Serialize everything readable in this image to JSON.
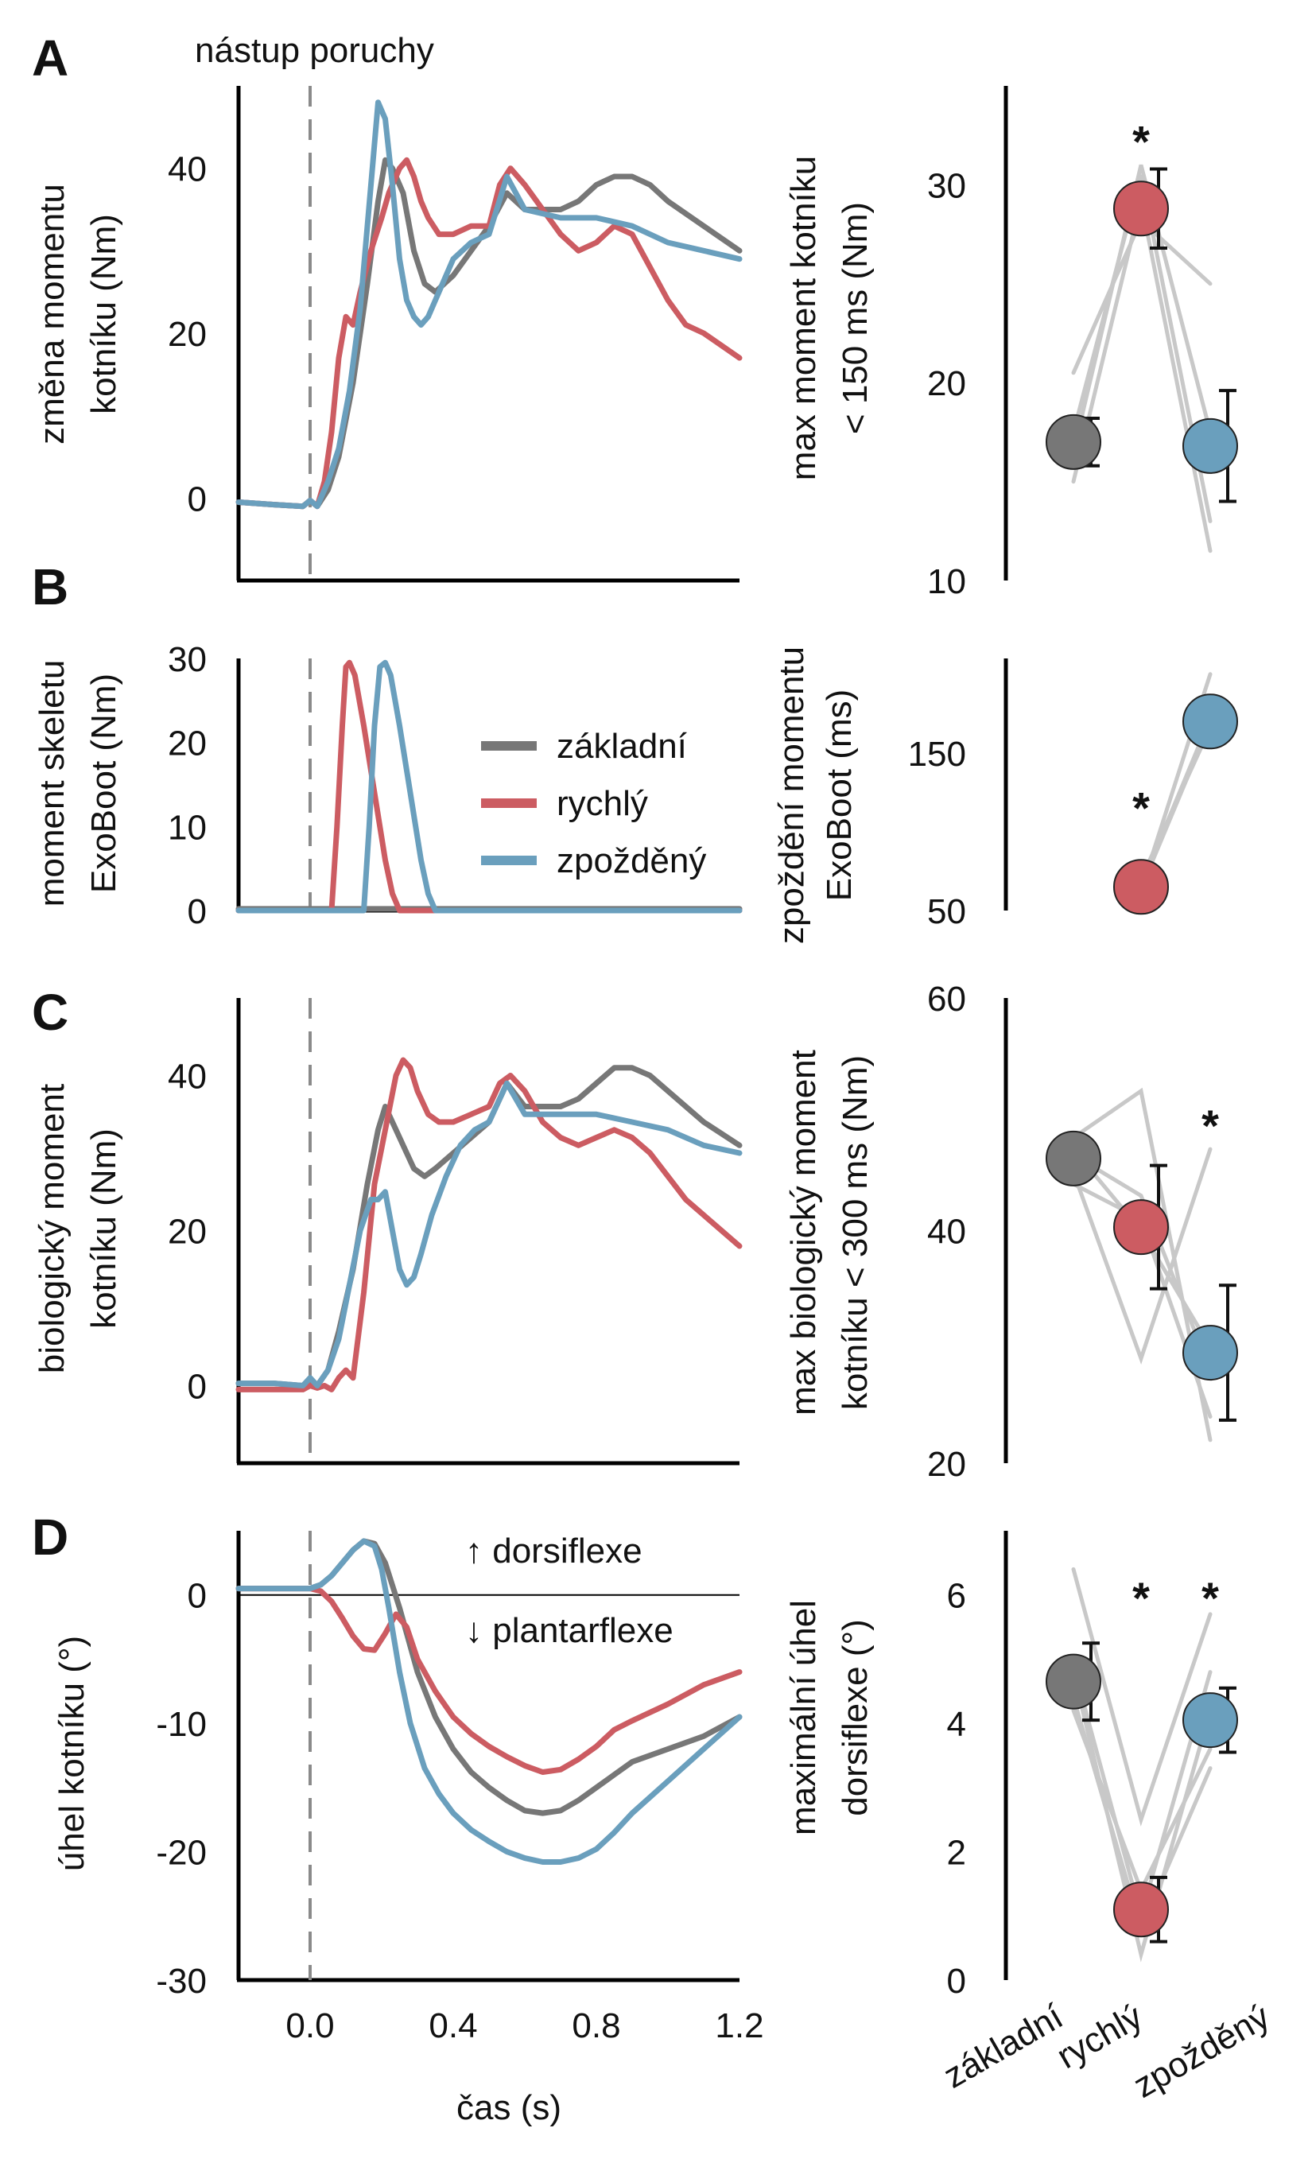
{
  "figure": {
    "perturbation_label": "nástup poruchy",
    "time_axis_label": "čas (s)",
    "legend": {
      "title": "",
      "items": [
        "základní",
        "rychlý",
        "zpožděný"
      ]
    },
    "colors": {
      "baseline": "#777777",
      "fast": "#cc5c62",
      "delayed": "#6a9fbd",
      "subject_lines": "#c8c8c8"
    },
    "group_labels": [
      "základní",
      "rychlý",
      "zpožděný"
    ]
  },
  "chart_data": [
    {
      "type": "line",
      "panel": "A",
      "title": "",
      "xlabel": "",
      "ylabel_lines": [
        "změna momentu",
        "kotníku (Nm)"
      ],
      "xlim": [
        -0.2,
        1.2
      ],
      "ylim": [
        -10,
        50
      ],
      "yticks": [
        0,
        20,
        40
      ],
      "series": [
        {
          "name": "základní",
          "x": [
            -0.2,
            -0.1,
            -0.02,
            0.0,
            0.02,
            0.05,
            0.08,
            0.12,
            0.16,
            0.19,
            0.21,
            0.23,
            0.26,
            0.29,
            0.32,
            0.35,
            0.4,
            0.45,
            0.5,
            0.55,
            0.6,
            0.65,
            0.7,
            0.75,
            0.8,
            0.85,
            0.9,
            0.95,
            1.0,
            1.1,
            1.2
          ],
          "y": [
            -0.5,
            -0.8,
            -1.0,
            -0.3,
            -1.0,
            1,
            5,
            14,
            26,
            36,
            41,
            40,
            37,
            30,
            26,
            25,
            27,
            30,
            33,
            37,
            35,
            35,
            35,
            36,
            38,
            39,
            39,
            38,
            36,
            33,
            30
          ]
        },
        {
          "name": "rychlý",
          "x": [
            -0.2,
            -0.1,
            -0.02,
            0.0,
            0.02,
            0.04,
            0.06,
            0.08,
            0.1,
            0.12,
            0.14,
            0.17,
            0.2,
            0.22,
            0.25,
            0.27,
            0.29,
            0.31,
            0.33,
            0.36,
            0.4,
            0.45,
            0.5,
            0.53,
            0.56,
            0.6,
            0.65,
            0.7,
            0.75,
            0.8,
            0.85,
            0.9,
            0.95,
            1.0,
            1.05,
            1.1,
            1.2
          ],
          "y": [
            -0.5,
            -0.8,
            -1.0,
            -0.3,
            -1.0,
            2,
            8,
            17,
            22,
            21,
            25,
            30,
            34,
            37,
            40,
            41,
            39,
            36,
            34,
            32,
            32,
            33,
            33,
            38,
            40,
            38,
            35,
            32,
            30,
            31,
            33,
            32,
            28,
            24,
            21,
            20,
            17
          ]
        },
        {
          "name": "zpožděný",
          "x": [
            -0.2,
            -0.1,
            -0.02,
            0.0,
            0.02,
            0.05,
            0.08,
            0.11,
            0.14,
            0.17,
            0.19,
            0.21,
            0.23,
            0.25,
            0.27,
            0.29,
            0.31,
            0.33,
            0.36,
            0.4,
            0.45,
            0.5,
            0.55,
            0.6,
            0.7,
            0.8,
            0.9,
            1.0,
            1.1,
            1.2
          ],
          "y": [
            -0.5,
            -0.8,
            -1.0,
            -0.3,
            -1.0,
            2,
            6,
            13,
            23,
            38,
            48,
            46,
            38,
            29,
            24,
            22,
            21,
            22,
            25,
            29,
            31,
            32,
            39,
            35,
            34,
            34,
            33,
            31,
            30,
            29
          ]
        }
      ]
    },
    {
      "type": "scatter",
      "panel": "A-summary",
      "title": "",
      "ylabel_lines": [
        "max moment kotníku",
        "< 150 ms (Nm)"
      ],
      "ylim": [
        10,
        35
      ],
      "yticks": [
        10,
        20,
        30
      ],
      "categories": [
        "základní",
        "rychlý",
        "zpožděný"
      ],
      "means": [
        17.0,
        28.8,
        16.8
      ],
      "errors": [
        1.2,
        2.0,
        2.8
      ],
      "significance": [
        "",
        "*",
        ""
      ],
      "subject_lines": [
        [
          20.5,
          28.2,
          25.0
        ],
        [
          15.0,
          29.2,
          11.5
        ],
        [
          17.5,
          30.5,
          13.0
        ],
        [
          16.5,
          31.0,
          17.5
        ]
      ]
    },
    {
      "type": "line",
      "panel": "B",
      "title": "",
      "xlabel": "",
      "ylabel_lines": [
        "moment skeletu",
        "ExoBoot (Nm)"
      ],
      "xlim": [
        -0.2,
        1.2
      ],
      "ylim": [
        0,
        30
      ],
      "yticks": [
        0,
        10,
        20,
        30
      ],
      "series": [
        {
          "name": "základní",
          "x": [
            -0.2,
            1.2
          ],
          "y": [
            0.2,
            0.2
          ]
        },
        {
          "name": "rychlý",
          "x": [
            -0.2,
            0.06,
            0.075,
            0.09,
            0.1,
            0.11,
            0.125,
            0.15,
            0.18,
            0.21,
            0.23,
            0.25,
            1.2
          ],
          "y": [
            0,
            0,
            10,
            22,
            29,
            29.5,
            28,
            22,
            14,
            6,
            2,
            0,
            0
          ]
        },
        {
          "name": "zpožděný",
          "x": [
            -0.2,
            0.15,
            0.165,
            0.18,
            0.195,
            0.21,
            0.225,
            0.25,
            0.28,
            0.31,
            0.33,
            0.35,
            1.2
          ],
          "y": [
            0,
            0,
            10,
            22,
            29,
            29.5,
            28,
            22,
            14,
            6,
            2,
            0,
            0
          ]
        }
      ]
    },
    {
      "type": "scatter",
      "panel": "B-summary",
      "title": "",
      "ylabel_lines": [
        "zpoždění momentu",
        "ExoBoot (ms)"
      ],
      "ylim": [
        50,
        210
      ],
      "yticks": [
        50,
        150
      ],
      "categories": [
        "rychlý",
        "zpožděný"
      ],
      "means": [
        65,
        170
      ],
      "errors": [
        0,
        0
      ],
      "significance": [
        "*",
        ""
      ],
      "subject_lines": [
        [
          63,
          200
        ],
        [
          66,
          172
        ],
        [
          68,
          168
        ],
        [
          70,
          166
        ],
        [
          64,
          169
        ]
      ]
    },
    {
      "type": "line",
      "panel": "C",
      "title": "",
      "xlabel": "",
      "ylabel_lines": [
        "biologický moment",
        "kotníku (Nm)"
      ],
      "xlim": [
        -0.2,
        1.2
      ],
      "ylim": [
        -10,
        50
      ],
      "yticks": [
        0,
        20,
        40
      ],
      "series": [
        {
          "name": "základní",
          "x": [
            -0.2,
            -0.1,
            -0.02,
            0.0,
            0.02,
            0.05,
            0.08,
            0.12,
            0.16,
            0.19,
            0.21,
            0.23,
            0.26,
            0.29,
            0.32,
            0.35,
            0.4,
            0.45,
            0.5,
            0.55,
            0.6,
            0.65,
            0.7,
            0.75,
            0.8,
            0.85,
            0.9,
            0.95,
            1.0,
            1.1,
            1.2
          ],
          "y": [
            0.3,
            0.3,
            0.0,
            1.0,
            0.0,
            2,
            7,
            15,
            26,
            33,
            36,
            34,
            31,
            28,
            27,
            28,
            30,
            32,
            34,
            39,
            36,
            36,
            36,
            37,
            39,
            41,
            41,
            40,
            38,
            34,
            31
          ]
        },
        {
          "name": "rychlý",
          "x": [
            -0.2,
            -0.1,
            -0.02,
            0.0,
            0.02,
            0.04,
            0.06,
            0.08,
            0.1,
            0.12,
            0.15,
            0.18,
            0.21,
            0.24,
            0.26,
            0.28,
            0.3,
            0.33,
            0.36,
            0.4,
            0.45,
            0.5,
            0.53,
            0.56,
            0.6,
            0.65,
            0.7,
            0.75,
            0.8,
            0.85,
            0.9,
            0.95,
            1.0,
            1.05,
            1.1,
            1.2
          ],
          "y": [
            -0.5,
            -0.5,
            -0.5,
            0.0,
            -0.3,
            0.0,
            -0.5,
            1.0,
            2.0,
            1.0,
            12,
            26,
            33,
            40,
            42,
            41,
            38,
            35,
            34,
            34,
            35,
            36,
            39,
            40,
            38,
            34,
            32,
            31,
            32,
            33,
            32,
            30,
            27,
            24,
            22,
            18
          ]
        },
        {
          "name": "zpožděný",
          "x": [
            -0.2,
            -0.1,
            -0.02,
            0.0,
            0.02,
            0.05,
            0.08,
            0.11,
            0.14,
            0.17,
            0.19,
            0.21,
            0.23,
            0.25,
            0.27,
            0.29,
            0.31,
            0.34,
            0.38,
            0.42,
            0.46,
            0.5,
            0.55,
            0.6,
            0.7,
            0.8,
            0.9,
            1.0,
            1.1,
            1.2
          ],
          "y": [
            0.3,
            0.3,
            0.0,
            1.0,
            0.0,
            2,
            6,
            13,
            20,
            24,
            24,
            25,
            20,
            15,
            13,
            14,
            17,
            22,
            27,
            31,
            33,
            34,
            39,
            35,
            35,
            35,
            34,
            33,
            31,
            30
          ]
        }
      ]
    },
    {
      "type": "scatter",
      "panel": "C-summary",
      "title": "",
      "ylabel_lines": [
        "max biologický moment",
        "kotníku < 300 ms (Nm)"
      ],
      "ylim": [
        20,
        60
      ],
      "yticks": [
        20,
        40,
        60
      ],
      "categories": [
        "základní",
        "rychlý",
        "zpožděný"
      ],
      "means": [
        46.2,
        40.3,
        29.5
      ],
      "errors": [
        0,
        5.3,
        5.8
      ],
      "significance": [
        "",
        "",
        "*"
      ],
      "subject_lines": [
        [
          48.0,
          52.0,
          22.0
        ],
        [
          45.0,
          29.0,
          47.0
        ],
        [
          47.0,
          40.0,
          30.0
        ],
        [
          44.0,
          41.0,
          24.0
        ],
        [
          46.5,
          43.0,
          28.0
        ]
      ]
    },
    {
      "type": "line",
      "panel": "D",
      "title": "",
      "xlabel": "čas (s)",
      "ylabel_lines": [
        "úhel kotníku (°)"
      ],
      "xlim": [
        -0.2,
        1.2
      ],
      "ylim": [
        -30,
        5
      ],
      "xticks": [
        0.0,
        0.4,
        0.8,
        1.2
      ],
      "xtick_labels": [
        "0.0",
        "0.4",
        "0.8",
        "1.2"
      ],
      "yticks": [
        -30,
        -20,
        -10,
        0
      ],
      "annotations": [
        "↑ dorsiflexe",
        "↓ plantarflexe"
      ],
      "series": [
        {
          "name": "základní",
          "x": [
            -0.2,
            -0.05,
            0.0,
            0.03,
            0.06,
            0.09,
            0.12,
            0.15,
            0.18,
            0.21,
            0.25,
            0.3,
            0.35,
            0.4,
            0.45,
            0.5,
            0.55,
            0.6,
            0.65,
            0.7,
            0.75,
            0.8,
            0.85,
            0.9,
            1.0,
            1.1,
            1.2
          ],
          "y": [
            0.5,
            0.5,
            0.5,
            0.8,
            1.5,
            2.5,
            3.5,
            4.2,
            4.0,
            2.5,
            -1,
            -6,
            -9.5,
            -12,
            -13.8,
            -15,
            -16,
            -16.8,
            -17,
            -16.8,
            -16,
            -15,
            -14,
            -13,
            -12,
            -11,
            -9.5
          ]
        },
        {
          "name": "rychlý",
          "x": [
            -0.2,
            -0.05,
            0.0,
            0.03,
            0.06,
            0.09,
            0.12,
            0.15,
            0.18,
            0.21,
            0.24,
            0.27,
            0.3,
            0.35,
            0.4,
            0.45,
            0.5,
            0.55,
            0.6,
            0.65,
            0.7,
            0.75,
            0.8,
            0.85,
            0.9,
            1.0,
            1.1,
            1.2
          ],
          "y": [
            0.5,
            0.5,
            0.5,
            0.3,
            -0.5,
            -1.8,
            -3.2,
            -4.2,
            -4.3,
            -3,
            -1.5,
            -2.5,
            -5,
            -7.5,
            -9.5,
            -10.8,
            -11.8,
            -12.6,
            -13.3,
            -13.8,
            -13.6,
            -12.8,
            -11.8,
            -10.5,
            -9.8,
            -8.5,
            -7,
            -6
          ]
        },
        {
          "name": "zpožděný",
          "x": [
            -0.2,
            -0.05,
            0.0,
            0.03,
            0.06,
            0.09,
            0.12,
            0.15,
            0.18,
            0.2,
            0.22,
            0.25,
            0.28,
            0.32,
            0.36,
            0.4,
            0.45,
            0.5,
            0.55,
            0.6,
            0.65,
            0.7,
            0.75,
            0.8,
            0.85,
            0.9,
            1.0,
            1.1,
            1.2
          ],
          "y": [
            0.5,
            0.5,
            0.5,
            0.8,
            1.5,
            2.5,
            3.5,
            4.2,
            3.8,
            2,
            -1,
            -6,
            -10,
            -13.5,
            -15.5,
            -17,
            -18.3,
            -19.2,
            -20,
            -20.5,
            -20.8,
            -20.8,
            -20.5,
            -19.8,
            -18.5,
            -17,
            -14.5,
            -12,
            -9.5
          ]
        }
      ]
    },
    {
      "type": "scatter",
      "panel": "D-summary",
      "title": "",
      "ylabel_lines": [
        "maximální úhel",
        "dorsiflexe (°)"
      ],
      "ylim": [
        0,
        7
      ],
      "yticks": [
        0,
        2,
        4,
        6
      ],
      "categories": [
        "základní",
        "rychlý",
        "zpožděný"
      ],
      "means": [
        4.65,
        1.1,
        4.05
      ],
      "errors": [
        0.6,
        0.5,
        0.5
      ],
      "significance": [
        "",
        "*",
        "*"
      ],
      "subject_lines": [
        [
          6.4,
          2.5,
          5.7
        ],
        [
          4.8,
          0.4,
          4.2
        ],
        [
          4.2,
          1.4,
          3.6
        ],
        [
          4.9,
          1.0,
          4.8
        ],
        [
          4.4,
          0.8,
          3.3
        ]
      ]
    }
  ]
}
